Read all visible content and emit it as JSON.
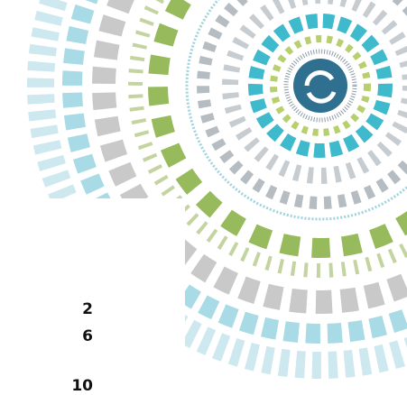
{
  "numbers": [
    2,
    6,
    10
  ]
}
